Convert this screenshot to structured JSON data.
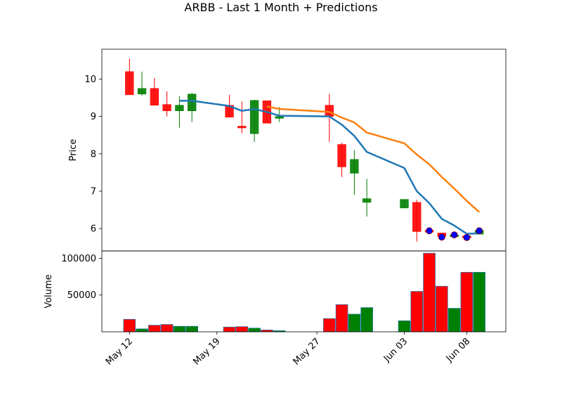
{
  "chart_data": {
    "type": "candlestick",
    "title": "ARBB - Last 1 Month + Predictions",
    "price_panel": {
      "ylabel": "Price",
      "ylim": [
        5.4,
        10.8
      ],
      "yticks": [
        6,
        7,
        8,
        9,
        10
      ]
    },
    "volume_panel": {
      "ylabel": "Volume",
      "ylim": [
        0,
        110000
      ],
      "yticks": [
        50000,
        100000
      ],
      "ytick_labels": [
        "50000",
        "100000"
      ]
    },
    "x_ticks": [
      {
        "date": "2024-05-12",
        "label": "May 12"
      },
      {
        "date": "2024-05-19",
        "label": "May 19"
      },
      {
        "date": "2024-05-27",
        "label": "May 27"
      },
      {
        "date": "2024-06-03",
        "label": "Jun 03"
      },
      {
        "date": "2024-06-08",
        "label": "Jun 08"
      }
    ],
    "x_range": [
      "2024-05-09T19:00",
      "2024-06-11T03:00"
    ],
    "candles": [
      {
        "date": "2024-05-12",
        "open": 10.2,
        "high": 10.55,
        "low": 9.58,
        "close": 9.58,
        "volume": 17000
      },
      {
        "date": "2024-05-13",
        "open": 9.6,
        "high": 10.2,
        "low": 9.55,
        "close": 9.75,
        "volume": 4000
      },
      {
        "date": "2024-05-14",
        "open": 9.75,
        "high": 10.03,
        "low": 9.3,
        "close": 9.3,
        "volume": 9000
      },
      {
        "date": "2024-05-15",
        "open": 9.32,
        "high": 9.67,
        "low": 9.0,
        "close": 9.15,
        "volume": 10000
      },
      {
        "date": "2024-05-16",
        "open": 9.15,
        "high": 9.55,
        "low": 8.7,
        "close": 9.3,
        "volume": 7500
      },
      {
        "date": "2024-05-17",
        "open": 9.15,
        "high": 9.62,
        "low": 8.85,
        "close": 9.6,
        "volume": 7500
      },
      {
        "date": "2024-05-20",
        "open": 9.3,
        "high": 9.58,
        "low": 8.98,
        "close": 8.98,
        "volume": 6500
      },
      {
        "date": "2024-05-21",
        "open": 8.74,
        "high": 9.4,
        "low": 8.55,
        "close": 8.7,
        "volume": 7000
      },
      {
        "date": "2024-05-22",
        "open": 8.54,
        "high": 9.45,
        "low": 8.32,
        "close": 9.43,
        "volume": 5000
      },
      {
        "date": "2024-05-23",
        "open": 9.42,
        "high": 9.42,
        "low": 8.82,
        "close": 8.82,
        "volume": 2500
      },
      {
        "date": "2024-05-24",
        "open": 8.95,
        "high": 9.25,
        "low": 8.85,
        "close": 9.0,
        "volume": 1500
      },
      {
        "date": "2024-05-28",
        "open": 9.3,
        "high": 9.6,
        "low": 8.32,
        "close": 9.0,
        "volume": 18000
      },
      {
        "date": "2024-05-29",
        "open": 8.25,
        "high": 8.3,
        "low": 7.38,
        "close": 7.65,
        "volume": 37000
      },
      {
        "date": "2024-05-30",
        "open": 7.48,
        "high": 8.1,
        "low": 6.9,
        "close": 7.85,
        "volume": 24000
      },
      {
        "date": "2024-05-31",
        "open": 6.7,
        "high": 7.33,
        "low": 6.32,
        "close": 6.8,
        "volume": 33000
      },
      {
        "date": "2024-06-03",
        "open": 6.55,
        "high": 6.78,
        "low": 6.55,
        "close": 6.78,
        "volume": 15000
      },
      {
        "date": "2024-06-04",
        "open": 6.7,
        "high": 6.77,
        "low": 5.65,
        "close": 5.92,
        "volume": 55000
      },
      {
        "date": "2024-06-05",
        "open": 5.95,
        "high": 5.96,
        "low": 5.93,
        "close": 5.94,
        "volume": 107000
      },
      {
        "date": "2024-06-06",
        "open": 5.88,
        "high": 5.88,
        "low": 5.75,
        "close": 5.79,
        "volume": 62000
      },
      {
        "date": "2024-06-07",
        "open": 5.79,
        "high": 5.85,
        "low": 5.78,
        "close": 5.83,
        "volume": 32000
      },
      {
        "date": "2024-06-08",
        "open": 5.8,
        "high": 5.82,
        "low": 5.75,
        "close": 5.77,
        "volume": 81000
      },
      {
        "date": "2024-06-09",
        "open": 5.85,
        "high": 5.98,
        "low": 5.85,
        "close": 5.95,
        "volume": 81000
      }
    ],
    "prediction_markers": [
      {
        "date": "2024-06-05",
        "value": 5.94
      },
      {
        "date": "2024-06-06",
        "value": 5.77
      },
      {
        "date": "2024-06-07",
        "value": 5.83
      },
      {
        "date": "2024-06-08",
        "value": 5.76
      },
      {
        "date": "2024-06-09",
        "value": 5.94
      }
    ],
    "series": [
      {
        "color": "#1f77b4",
        "points": [
          {
            "date": "2024-05-16",
            "value": 9.42
          },
          {
            "date": "2024-05-17",
            "value": 9.42
          },
          {
            "date": "2024-05-20",
            "value": 9.28
          },
          {
            "date": "2024-05-21",
            "value": 9.15
          },
          {
            "date": "2024-05-22",
            "value": 9.2
          },
          {
            "date": "2024-05-23",
            "value": 9.12
          },
          {
            "date": "2024-05-24",
            "value": 9.02
          },
          {
            "date": "2024-05-28",
            "value": 9.0
          },
          {
            "date": "2024-05-29",
            "value": 8.78
          },
          {
            "date": "2024-05-30",
            "value": 8.48
          },
          {
            "date": "2024-05-31",
            "value": 8.05
          },
          {
            "date": "2024-06-03",
            "value": 7.62
          },
          {
            "date": "2024-06-04",
            "value": 7.0
          },
          {
            "date": "2024-06-05",
            "value": 6.68
          },
          {
            "date": "2024-06-06",
            "value": 6.26
          },
          {
            "date": "2024-06-07",
            "value": 6.08
          },
          {
            "date": "2024-06-08",
            "value": 5.86
          },
          {
            "date": "2024-06-09",
            "value": 5.87
          }
        ]
      },
      {
        "color": "#ff7f0e",
        "points": [
          {
            "date": "2024-05-23",
            "value": 9.27
          },
          {
            "date": "2024-05-24",
            "value": 9.2
          },
          {
            "date": "2024-05-28",
            "value": 9.12
          },
          {
            "date": "2024-05-29",
            "value": 8.97
          },
          {
            "date": "2024-05-30",
            "value": 8.84
          },
          {
            "date": "2024-05-31",
            "value": 8.57
          },
          {
            "date": "2024-06-03",
            "value": 8.28
          },
          {
            "date": "2024-06-04",
            "value": 7.98
          },
          {
            "date": "2024-06-05",
            "value": 7.72
          },
          {
            "date": "2024-06-06",
            "value": 7.38
          },
          {
            "date": "2024-06-07",
            "value": 7.07
          },
          {
            "date": "2024-06-08",
            "value": 6.74
          },
          {
            "date": "2024-06-09",
            "value": 6.44
          }
        ]
      }
    ],
    "colors": {
      "up": "#008000",
      "down": "#ff0000",
      "marker_face": "#0000ff",
      "marker_edge": "#8b0000"
    },
    "grid": false,
    "legend": false
  }
}
